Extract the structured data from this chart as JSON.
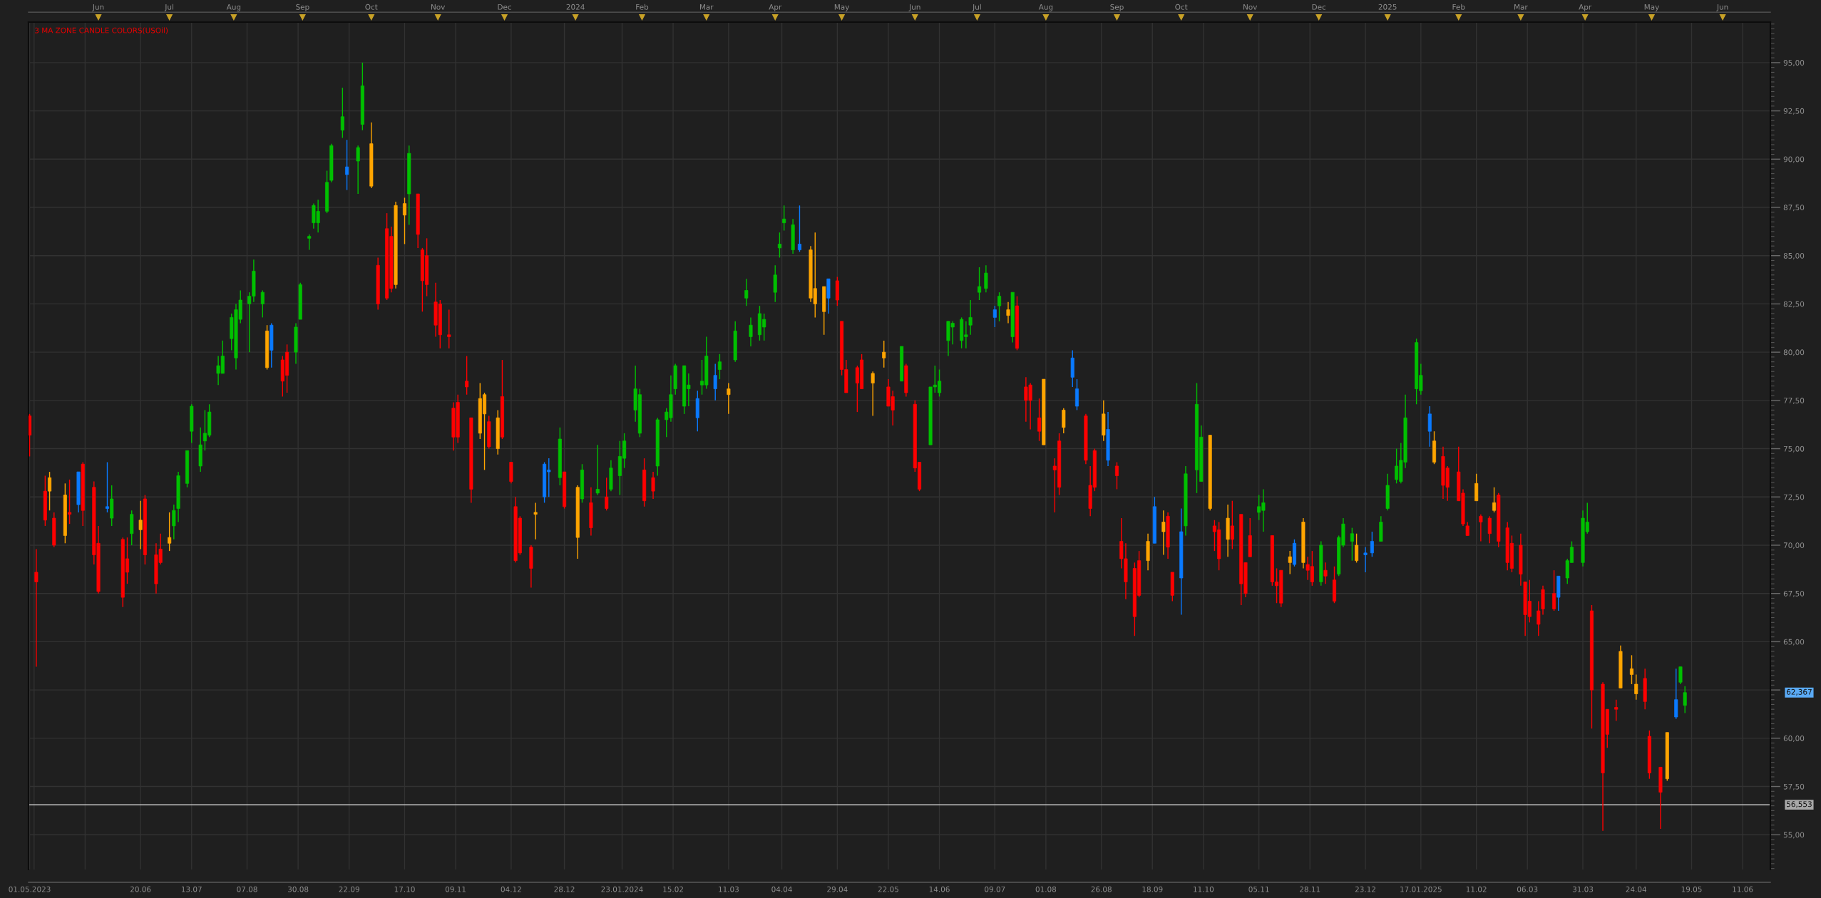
{
  "chart_data": {
    "type": "candlestick",
    "title": "3 MA ZONE CANDLE COLORS(USOil)",
    "x": [
      "2023-05-01",
      "2023-05-04",
      "2023-05-08",
      "2023-05-10",
      "2023-05-12",
      "2023-05-17",
      "2023-05-19",
      "2023-05-23",
      "2023-05-25",
      "2023-05-30",
      "2023-06-01",
      "2023-06-05",
      "2023-06-07",
      "2023-06-12",
      "2023-06-14",
      "2023-06-16",
      "2023-06-20",
      "2023-06-22",
      "2023-06-27",
      "2023-06-29",
      "2023-07-03",
      "2023-07-05",
      "2023-07-07",
      "2023-07-11",
      "2023-07-13",
      "2023-07-17",
      "2023-07-19",
      "2023-07-21",
      "2023-07-25",
      "2023-07-27",
      "2023-07-31",
      "2023-08-02",
      "2023-08-04",
      "2023-08-08",
      "2023-08-10",
      "2023-08-14",
      "2023-08-16",
      "2023-08-18",
      "2023-08-23",
      "2023-08-25",
      "2023-08-29",
      "2023-08-31",
      "2023-09-04",
      "2023-09-06",
      "2023-09-08",
      "2023-09-12",
      "2023-09-14",
      "2023-09-19",
      "2023-09-21",
      "2023-09-26",
      "2023-09-28",
      "2023-10-02",
      "2023-10-05",
      "2023-10-09",
      "2023-10-11",
      "2023-10-13",
      "2023-10-17",
      "2023-10-19",
      "2023-10-23",
      "2023-10-25",
      "2023-10-27",
      "2023-10-31",
      "2023-11-02",
      "2023-11-06",
      "2023-11-08",
      "2023-11-10",
      "2023-11-14",
      "2023-11-16",
      "2023-11-20",
      "2023-11-22",
      "2023-11-24",
      "2023-11-28",
      "2023-11-30",
      "2023-12-04",
      "2023-12-06",
      "2023-12-08",
      "2023-12-13",
      "2023-12-15",
      "2023-12-19",
      "2023-12-21",
      "2023-12-26",
      "2023-12-28",
      "2024-01-03",
      "2024-01-05",
      "2024-01-09",
      "2024-01-12",
      "2024-01-16",
      "2024-01-18",
      "2024-01-22",
      "2024-01-24",
      "2024-01-29",
      "2024-01-31",
      "2024-02-02",
      "2024-02-06",
      "2024-02-08",
      "2024-02-12",
      "2024-02-14",
      "2024-02-16",
      "2024-02-20",
      "2024-02-22",
      "2024-02-26",
      "2024-02-28",
      "2024-03-01",
      "2024-03-05",
      "2024-03-07",
      "2024-03-11",
      "2024-03-14",
      "2024-03-19",
      "2024-03-21",
      "2024-03-25",
      "2024-03-27",
      "2024-04-01",
      "2024-04-03",
      "2024-04-05",
      "2024-04-09",
      "2024-04-12",
      "2024-04-17",
      "2024-04-19",
      "2024-04-23",
      "2024-04-25",
      "2024-04-29",
      "2024-05-01",
      "2024-05-03",
      "2024-05-08",
      "2024-05-10",
      "2024-05-15",
      "2024-05-20",
      "2024-05-22",
      "2024-05-24",
      "2024-05-28",
      "2024-05-30",
      "2024-06-03",
      "2024-06-05",
      "2024-06-10",
      "2024-06-12",
      "2024-06-14",
      "2024-06-18",
      "2024-06-20",
      "2024-06-24",
      "2024-06-26",
      "2024-06-28",
      "2024-07-02",
      "2024-07-05",
      "2024-07-09",
      "2024-07-11",
      "2024-07-15",
      "2024-07-17",
      "2024-07-19",
      "2024-07-23",
      "2024-07-25",
      "2024-07-29",
      "2024-07-31",
      "2024-08-05",
      "2024-08-07",
      "2024-08-09",
      "2024-08-13",
      "2024-08-15",
      "2024-08-19",
      "2024-08-21",
      "2024-08-23",
      "2024-08-27",
      "2024-08-29",
      "2024-09-02",
      "2024-09-04",
      "2024-09-06",
      "2024-09-10",
      "2024-09-12",
      "2024-09-16",
      "2024-09-19",
      "2024-09-23",
      "2024-09-25",
      "2024-09-27",
      "2024-10-01",
      "2024-10-03",
      "2024-10-08",
      "2024-10-10",
      "2024-10-14",
      "2024-10-16",
      "2024-10-18",
      "2024-10-22",
      "2024-10-24",
      "2024-10-28",
      "2024-10-30",
      "2024-11-01",
      "2024-11-05",
      "2024-11-07",
      "2024-11-11",
      "2024-11-13",
      "2024-11-15",
      "2024-11-19",
      "2024-11-21",
      "2024-11-25",
      "2024-11-27",
      "2024-11-29",
      "2024-12-03",
      "2024-12-05",
      "2024-12-09",
      "2024-12-11",
      "2024-12-13",
      "2024-12-17",
      "2024-12-19",
      "2024-12-23",
      "2024-12-26",
      "2024-12-30",
      "2025-01-02",
      "2025-01-06",
      "2025-01-08",
      "2025-01-10",
      "2025-01-15",
      "2025-01-17",
      "2025-01-21",
      "2025-01-23",
      "2025-01-27",
      "2025-01-29",
      "2025-02-03",
      "2025-02-05",
      "2025-02-07",
      "2025-02-11",
      "2025-02-13",
      "2025-02-17",
      "2025-02-19",
      "2025-02-21",
      "2025-02-25",
      "2025-02-27",
      "2025-03-03",
      "2025-03-05",
      "2025-03-07",
      "2025-03-11",
      "2025-03-13",
      "2025-03-18",
      "2025-03-20",
      "2025-03-24",
      "2025-03-26",
      "2025-03-31",
      "2025-04-02",
      "2025-04-04",
      "2025-04-09",
      "2025-04-11",
      "2025-04-15",
      "2025-04-17",
      "2025-04-22",
      "2025-04-24",
      "2025-04-28",
      "2025-04-30",
      "2025-05-05",
      "2025-05-08",
      "2025-05-12",
      "2025-05-14",
      "2025-05-16"
    ],
    "ohlc": [
      [
        76.7,
        76.8,
        74.6,
        75.7
      ],
      [
        68.6,
        69.8,
        63.7,
        68.1
      ],
      [
        72.8,
        73.6,
        71.0,
        71.3
      ],
      [
        72.8,
        73.8,
        71.8,
        73.5
      ],
      [
        71.4,
        71.7,
        69.9,
        70.0
      ],
      [
        70.5,
        73.2,
        70.1,
        72.6
      ],
      [
        71.7,
        73.4,
        71.1,
        71.6
      ],
      [
        72.1,
        73.8,
        71.7,
        73.8
      ],
      [
        74.2,
        74.3,
        71.0,
        71.8
      ],
      [
        73.0,
        73.3,
        69.0,
        69.5
      ],
      [
        70.1,
        71.0,
        67.5,
        67.6
      ],
      [
        71.9,
        74.3,
        71.7,
        72.0
      ],
      [
        71.4,
        73.1,
        71.0,
        72.4
      ],
      [
        70.3,
        70.4,
        66.8,
        67.3
      ],
      [
        69.3,
        70.4,
        68.0,
        68.6
      ],
      [
        70.6,
        71.8,
        70.0,
        71.6
      ],
      [
        71.3,
        72.3,
        69.8,
        70.8
      ],
      [
        72.4,
        72.6,
        69.0,
        69.5
      ],
      [
        69.5,
        70.1,
        67.5,
        68.0
      ],
      [
        69.8,
        70.6,
        69.0,
        69.1
      ],
      [
        70.1,
        71.7,
        69.7,
        70.4
      ],
      [
        71.0,
        72.1,
        70.3,
        71.8
      ],
      [
        71.9,
        73.8,
        71.2,
        73.6
      ],
      [
        73.2,
        74.9,
        73.0,
        74.9
      ],
      [
        75.9,
        77.3,
        75.3,
        77.2
      ],
      [
        74.1,
        76.1,
        73.8,
        75.2
      ],
      [
        75.4,
        77.0,
        74.9,
        75.8
      ],
      [
        75.7,
        77.3,
        75.6,
        76.9
      ],
      [
        78.9,
        79.8,
        78.3,
        79.3
      ],
      [
        78.9,
        80.6,
        78.9,
        79.8
      ],
      [
        80.7,
        82.0,
        80.1,
        81.8
      ],
      [
        79.7,
        82.5,
        79.1,
        82.2
      ],
      [
        81.7,
        83.2,
        81.5,
        82.7
      ],
      [
        82.5,
        83.1,
        80.0,
        82.9
      ],
      [
        82.9,
        84.8,
        82.6,
        84.2
      ],
      [
        82.5,
        83.2,
        81.8,
        83.1
      ],
      [
        81.1,
        81.4,
        79.1,
        79.2
      ],
      [
        80.1,
        81.5,
        79.2,
        81.4
      ],
      [
        79.6,
        79.8,
        77.7,
        78.5
      ],
      [
        80.0,
        80.4,
        77.9,
        78.8
      ],
      [
        80.0,
        81.5,
        79.4,
        81.3
      ],
      [
        81.7,
        83.6,
        81.7,
        83.5
      ],
      [
        85.9,
        86.1,
        85.3,
        86.0
      ],
      [
        86.7,
        87.7,
        86.4,
        87.6
      ],
      [
        86.7,
        87.9,
        86.2,
        87.3
      ],
      [
        87.3,
        89.4,
        87.2,
        88.8
      ],
      [
        88.9,
        90.8,
        88.8,
        90.7
      ],
      [
        91.5,
        93.7,
        91.1,
        92.2
      ],
      [
        89.6,
        91.0,
        88.4,
        89.2
      ],
      [
        89.9,
        90.7,
        88.2,
        90.6
      ],
      [
        91.8,
        95.0,
        91.5,
        93.8
      ],
      [
        90.8,
        91.9,
        88.5,
        88.6
      ],
      [
        84.5,
        84.9,
        82.2,
        82.5
      ],
      [
        86.4,
        87.2,
        82.7,
        82.8
      ],
      [
        86.0,
        86.5,
        83.1,
        83.3
      ],
      [
        83.5,
        87.8,
        83.3,
        87.6
      ],
      [
        87.7,
        88.0,
        85.6,
        87.1
      ],
      [
        88.2,
        90.7,
        86.6,
        90.3
      ],
      [
        88.2,
        88.2,
        85.4,
        86.1
      ],
      [
        85.3,
        85.4,
        82.1,
        83.7
      ],
      [
        85.0,
        85.9,
        82.9,
        83.5
      ],
      [
        82.6,
        83.6,
        80.8,
        81.4
      ],
      [
        82.5,
        82.7,
        80.2,
        80.9
      ],
      [
        80.9,
        82.2,
        80.2,
        80.8
      ],
      [
        77.1,
        77.4,
        74.9,
        75.6
      ],
      [
        77.4,
        77.8,
        75.3,
        75.6
      ],
      [
        78.5,
        79.8,
        77.8,
        78.2
      ],
      [
        76.6,
        76.6,
        72.2,
        72.9
      ],
      [
        75.8,
        78.4,
        75.5,
        77.6
      ],
      [
        77.8,
        77.9,
        73.9,
        76.8
      ],
      [
        76.4,
        76.7,
        75.0,
        75.1
      ],
      [
        75.0,
        77.0,
        74.7,
        76.6
      ],
      [
        77.7,
        79.6,
        75.5,
        75.6
      ],
      [
        74.3,
        74.3,
        73.2,
        73.3
      ],
      [
        72.0,
        72.5,
        69.1,
        69.2
      ],
      [
        71.4,
        71.5,
        69.5,
        69.6
      ],
      [
        69.9,
        70.0,
        67.8,
        68.8
      ],
      [
        71.6,
        72.2,
        70.3,
        71.7
      ],
      [
        72.5,
        74.3,
        72.2,
        74.2
      ],
      [
        73.9,
        74.5,
        72.5,
        73.8
      ],
      [
        73.5,
        76.1,
        73.1,
        75.5
      ],
      [
        73.8,
        73.8,
        71.9,
        72.0
      ],
      [
        70.4,
        73.1,
        69.3,
        73.0
      ],
      [
        72.4,
        74.2,
        72.2,
        73.9
      ],
      [
        72.2,
        73.0,
        70.5,
        70.9
      ],
      [
        72.7,
        75.2,
        72.6,
        72.9
      ],
      [
        72.5,
        73.5,
        71.8,
        71.9
      ],
      [
        72.9,
        74.4,
        72.8,
        74.0
      ],
      [
        73.6,
        75.4,
        72.6,
        74.6
      ],
      [
        74.5,
        75.8,
        74.0,
        75.4
      ],
      [
        77.0,
        79.3,
        76.4,
        78.1
      ],
      [
        75.8,
        78.1,
        75.6,
        77.8
      ],
      [
        73.9,
        74.5,
        72.0,
        72.3
      ],
      [
        73.5,
        73.8,
        72.4,
        72.8
      ],
      [
        74.1,
        76.6,
        73.6,
        76.5
      ],
      [
        76.5,
        77.1,
        75.6,
        76.9
      ],
      [
        76.6,
        78.8,
        76.4,
        77.8
      ],
      [
        78.1,
        79.4,
        77.8,
        79.3
      ],
      [
        77.2,
        79.3,
        76.8,
        79.3
      ],
      [
        78.1,
        78.9,
        77.2,
        78.3
      ],
      [
        77.6,
        78.0,
        75.9,
        76.6
      ],
      [
        78.3,
        79.6,
        77.8,
        78.5
      ],
      [
        78.3,
        80.8,
        78.1,
        79.8
      ],
      [
        78.8,
        79.4,
        77.5,
        78.1
      ],
      [
        79.1,
        79.9,
        78.6,
        79.5
      ],
      [
        78.1,
        78.4,
        76.8,
        77.8
      ],
      [
        79.6,
        81.6,
        79.5,
        81.1
      ],
      [
        82.8,
        83.8,
        82.4,
        83.2
      ],
      [
        80.8,
        81.8,
        80.3,
        81.4
      ],
      [
        80.9,
        82.4,
        80.6,
        82.0
      ],
      [
        81.3,
        82.0,
        80.6,
        81.7
      ],
      [
        83.1,
        84.5,
        82.6,
        84.0
      ],
      [
        85.4,
        86.2,
        84.9,
        85.6
      ],
      [
        86.7,
        87.6,
        86.3,
        86.9
      ],
      [
        85.3,
        86.9,
        85.1,
        86.6
      ],
      [
        85.6,
        87.6,
        85.2,
        85.3
      ],
      [
        85.3,
        85.5,
        82.6,
        82.8
      ],
      [
        82.5,
        86.2,
        81.8,
        83.3
      ],
      [
        83.4,
        83.4,
        80.9,
        82.1
      ],
      [
        82.8,
        83.8,
        82.0,
        83.8
      ],
      [
        83.7,
        83.9,
        82.4,
        82.7
      ],
      [
        81.6,
        81.6,
        78.8,
        79.1
      ],
      [
        79.1,
        79.6,
        77.9,
        77.9
      ],
      [
        79.2,
        79.3,
        76.9,
        78.4
      ],
      [
        79.6,
        79.9,
        78.1,
        78.1
      ],
      [
        78.4,
        79.0,
        76.7,
        78.9
      ],
      [
        80.0,
        80.6,
        79.2,
        79.7
      ],
      [
        78.2,
        78.6,
        77.2,
        77.2
      ],
      [
        77.7,
        78.0,
        76.2,
        77.0
      ],
      [
        78.5,
        80.3,
        78.5,
        80.3
      ],
      [
        79.3,
        79.4,
        77.7,
        77.9
      ],
      [
        77.3,
        77.5,
        73.8,
        74.0
      ],
      [
        74.3,
        74.3,
        72.8,
        72.9
      ],
      [
        75.2,
        78.2,
        75.2,
        78.2
      ],
      [
        78.2,
        79.3,
        77.9,
        78.3
      ],
      [
        77.9,
        79.1,
        77.7,
        78.5
      ],
      [
        80.6,
        81.6,
        79.8,
        81.6
      ],
      [
        81.3,
        81.6,
        80.4,
        81.5
      ],
      [
        80.6,
        81.8,
        80.2,
        81.7
      ],
      [
        80.8,
        81.6,
        80.2,
        80.9
      ],
      [
        81.4,
        82.7,
        80.9,
        81.8
      ],
      [
        83.1,
        84.4,
        82.7,
        83.4
      ],
      [
        83.3,
        84.5,
        83.1,
        84.1
      ],
      [
        82.2,
        82.4,
        81.3,
        81.8
      ],
      [
        82.4,
        83.1,
        81.6,
        82.9
      ],
      [
        82.2,
        82.6,
        81.5,
        81.9
      ],
      [
        80.8,
        83.1,
        80.5,
        83.1
      ],
      [
        82.4,
        82.9,
        80.1,
        80.2
      ],
      [
        78.2,
        78.7,
        76.4,
        77.5
      ],
      [
        78.3,
        78.4,
        76.0,
        77.5
      ],
      [
        76.6,
        77.6,
        75.4,
        75.9
      ],
      [
        75.2,
        78.6,
        75.2,
        78.6
      ],
      [
        74.1,
        74.5,
        71.7,
        73.9
      ],
      [
        75.4,
        75.8,
        72.6,
        73.0
      ],
      [
        76.1,
        77.1,
        75.8,
        77.0
      ],
      [
        79.7,
        80.1,
        78.2,
        78.7
      ],
      [
        78.1,
        78.6,
        77.0,
        77.2
      ],
      [
        76.7,
        76.8,
        74.2,
        74.4
      ],
      [
        73.1,
        74.1,
        71.5,
        71.9
      ],
      [
        74.9,
        75.0,
        72.8,
        73.0
      ],
      [
        75.7,
        77.5,
        75.4,
        76.8
      ],
      [
        74.4,
        76.9,
        74.1,
        76.0
      ],
      [
        74.1,
        74.3,
        72.9,
        73.6
      ],
      [
        70.2,
        71.4,
        68.8,
        69.3
      ],
      [
        69.3,
        70.1,
        67.2,
        68.1
      ],
      [
        68.8,
        69.1,
        65.3,
        66.3
      ],
      [
        69.2,
        69.7,
        67.3,
        67.4
      ],
      [
        69.2,
        70.6,
        68.7,
        70.2
      ],
      [
        70.1,
        72.5,
        70.1,
        72.0
      ],
      [
        71.2,
        71.8,
        69.5,
        70.7
      ],
      [
        71.5,
        71.7,
        69.3,
        69.9
      ],
      [
        68.6,
        68.6,
        67.1,
        67.4
      ],
      [
        68.3,
        71.9,
        66.4,
        70.7
      ],
      [
        71.0,
        74.1,
        70.5,
        73.7
      ],
      [
        73.9,
        78.4,
        72.7,
        77.3
      ],
      [
        73.3,
        76.2,
        73.3,
        75.6
      ],
      [
        75.7,
        75.7,
        71.8,
        71.9
      ],
      [
        71.0,
        71.3,
        69.7,
        70.7
      ],
      [
        70.8,
        71.2,
        68.7,
        69.3
      ],
      [
        70.3,
        72.1,
        69.4,
        71.4
      ],
      [
        71.0,
        72.3,
        69.8,
        70.3
      ],
      [
        71.6,
        71.6,
        66.9,
        68.0
      ],
      [
        69.1,
        69.1,
        67.3,
        67.5
      ],
      [
        70.5,
        71.4,
        69.4,
        69.4
      ],
      [
        71.7,
        72.6,
        71.3,
        72.0
      ],
      [
        71.8,
        72.9,
        70.7,
        72.2
      ],
      [
        70.5,
        70.5,
        67.9,
        68.1
      ],
      [
        68.1,
        68.8,
        67.0,
        67.9
      ],
      [
        68.7,
        68.7,
        66.8,
        67.0
      ],
      [
        69.1,
        69.7,
        68.5,
        69.4
      ],
      [
        69.0,
        70.3,
        68.9,
        70.1
      ],
      [
        71.2,
        71.4,
        68.8,
        69.1
      ],
      [
        69.0,
        69.4,
        68.2,
        68.7
      ],
      [
        68.9,
        69.7,
        67.9,
        68.1
      ],
      [
        68.1,
        70.2,
        67.9,
        70.0
      ],
      [
        68.7,
        69.1,
        68.0,
        68.4
      ],
      [
        68.2,
        68.9,
        67.0,
        67.1
      ],
      [
        68.5,
        70.5,
        68.4,
        70.4
      ],
      [
        70.0,
        71.4,
        69.9,
        71.1
      ],
      [
        70.2,
        70.9,
        69.2,
        70.6
      ],
      [
        70.0,
        70.6,
        69.1,
        69.2
      ],
      [
        69.5,
        69.9,
        68.6,
        69.6
      ],
      [
        69.6,
        70.7,
        69.4,
        70.2
      ],
      [
        70.2,
        71.5,
        70.2,
        71.2
      ],
      [
        71.9,
        73.7,
        71.8,
        73.1
      ],
      [
        73.4,
        75.0,
        73.2,
        74.1
      ],
      [
        73.3,
        75.3,
        73.2,
        74.4
      ],
      [
        74.3,
        77.8,
        74.0,
        76.6
      ],
      [
        78.1,
        80.7,
        77.3,
        80.5
      ],
      [
        78.0,
        79.4,
        77.8,
        78.8
      ],
      [
        76.8,
        77.2,
        75.1,
        75.9
      ],
      [
        75.4,
        75.9,
        74.2,
        74.3
      ],
      [
        74.6,
        75.1,
        72.4,
        73.1
      ],
      [
        74.0,
        74.1,
        72.3,
        73.0
      ],
      [
        73.8,
        75.1,
        72.3,
        72.3
      ],
      [
        72.7,
        72.9,
        71.0,
        71.1
      ],
      [
        71.0,
        71.2,
        70.5,
        70.5
      ],
      [
        72.3,
        73.7,
        72.3,
        73.2
      ],
      [
        71.5,
        71.6,
        70.2,
        71.2
      ],
      [
        71.4,
        71.5,
        70.1,
        70.6
      ],
      [
        71.8,
        73.0,
        71.7,
        72.2
      ],
      [
        72.6,
        72.7,
        69.9,
        70.2
      ],
      [
        70.9,
        71.2,
        68.7,
        69.1
      ],
      [
        70.1,
        70.5,
        68.6,
        68.8
      ],
      [
        70.0,
        70.6,
        67.9,
        68.5
      ],
      [
        68.1,
        68.1,
        65.3,
        66.4
      ],
      [
        67.1,
        68.2,
        66.0,
        66.3
      ],
      [
        66.6,
        67.1,
        65.3,
        65.9
      ],
      [
        67.7,
        67.9,
        66.4,
        66.7
      ],
      [
        67.5,
        68.7,
        66.6,
        66.7
      ],
      [
        67.3,
        68.4,
        66.6,
        68.4
      ],
      [
        68.3,
        69.3,
        68.0,
        69.2
      ],
      [
        69.1,
        70.2,
        69.1,
        69.9
      ],
      [
        69.1,
        71.8,
        68.9,
        71.4
      ],
      [
        70.7,
        72.2,
        70.6,
        71.2
      ],
      [
        66.6,
        66.9,
        60.5,
        62.5
      ],
      [
        62.8,
        62.9,
        55.2,
        58.2
      ],
      [
        61.5,
        61.5,
        59.5,
        60.2
      ],
      [
        61.6,
        62.0,
        60.9,
        61.5
      ],
      [
        62.6,
        64.8,
        62.6,
        64.5
      ],
      [
        63.6,
        64.3,
        62.8,
        63.3
      ],
      [
        62.8,
        63.3,
        62.0,
        62.3
      ],
      [
        63.1,
        63.6,
        61.5,
        61.9
      ],
      [
        60.1,
        60.4,
        57.9,
        58.2
      ],
      [
        58.5,
        58.5,
        55.3,
        57.2
      ],
      [
        57.9,
        60.3,
        57.8,
        60.3
      ],
      [
        61.1,
        63.6,
        61.0,
        62.0
      ],
      [
        62.9,
        63.7,
        62.8,
        63.7
      ],
      [
        61.7,
        62.7,
        61.3,
        62.367
      ]
    ],
    "colors": [
      "#ff0000",
      "#ff0000",
      "#ff0000",
      "#ffa500",
      "#ff0000",
      "#ffa500",
      "#ff0000",
      "#0a7aff",
      "#ff0000",
      "#ff0000",
      "#ff0000",
      "#0a7aff",
      "#00c000",
      "#ff0000",
      "#ff0000",
      "#00c000",
      "#ffa500",
      "#ff0000",
      "#ff0000",
      "#ff0000",
      "#ffa500",
      "#00c000",
      "#00c000",
      "#00c000",
      "#00c000",
      "#00c000",
      "#00c000",
      "#00c000",
      "#00c000",
      "#00c000",
      "#00c000",
      "#00c000",
      "#00c000",
      "#00c000",
      "#00c000",
      "#00c000",
      "#ffa500",
      "#0a7aff",
      "#ff0000",
      "#ff0000",
      "#00c000",
      "#00c000",
      "#00c000",
      "#00c000",
      "#00c000",
      "#00c000",
      "#00c000",
      "#00c000",
      "#0a7aff",
      "#00c000",
      "#00c000",
      "#ffa500",
      "#ff0000",
      "#ff0000",
      "#ff0000",
      "#ffa500",
      "#ffa500",
      "#00c000",
      "#ff0000",
      "#ff0000",
      "#ff0000",
      "#ff0000",
      "#ff0000",
      "#ff0000",
      "#ff0000",
      "#ff0000",
      "#ff0000",
      "#ff0000",
      "#ffa500",
      "#ffa500",
      "#ff0000",
      "#ffa500",
      "#ff0000",
      "#ff0000",
      "#ff0000",
      "#ff0000",
      "#ff0000",
      "#ffa500",
      "#0a7aff",
      "#0a7aff",
      "#00c000",
      "#ff0000",
      "#ffa500",
      "#00c000",
      "#ff0000",
      "#00c000",
      "#ff0000",
      "#00c000",
      "#00c000",
      "#00c000",
      "#00c000",
      "#00c000",
      "#ff0000",
      "#ff0000",
      "#00c000",
      "#00c000",
      "#00c000",
      "#00c000",
      "#00c000",
      "#00c000",
      "#0a7aff",
      "#00c000",
      "#00c000",
      "#0a7aff",
      "#00c000",
      "#ffa500",
      "#00c000",
      "#00c000",
      "#00c000",
      "#00c000",
      "#00c000",
      "#00c000",
      "#00c000",
      "#00c000",
      "#00c000",
      "#0a7aff",
      "#ffa500",
      "#ffa500",
      "#ffa500",
      "#0a7aff",
      "#ff0000",
      "#ff0000",
      "#ff0000",
      "#ff0000",
      "#ff0000",
      "#ffa500",
      "#ffa500",
      "#ff0000",
      "#ff0000",
      "#00c000",
      "#ff0000",
      "#ff0000",
      "#ff0000",
      "#00c000",
      "#00c000",
      "#00c000",
      "#00c000",
      "#00c000",
      "#00c000",
      "#00c000",
      "#00c000",
      "#00c000",
      "#00c000",
      "#0a7aff",
      "#00c000",
      "#ffa500",
      "#00c000",
      "#ff0000",
      "#ff0000",
      "#ff0000",
      "#ff0000",
      "#ffa500",
      "#ff0000",
      "#ff0000",
      "#ffa500",
      "#0a7aff",
      "#0a7aff",
      "#ff0000",
      "#ff0000",
      "#ff0000",
      "#ffa500",
      "#0a7aff",
      "#ff0000",
      "#ff0000",
      "#ff0000",
      "#ff0000",
      "#ff0000",
      "#ffa500",
      "#0a7aff",
      "#ffa500",
      "#ff0000",
      "#ff0000",
      "#0a7aff",
      "#00c000",
      "#00c000",
      "#00c000",
      "#ffa500",
      "#ff0000",
      "#ff0000",
      "#ffa500",
      "#ff0000",
      "#ff0000",
      "#ff0000",
      "#ff0000",
      "#00c000",
      "#00c000",
      "#ff0000",
      "#ff0000",
      "#ff0000",
      "#ffa500",
      "#0a7aff",
      "#ffa500",
      "#ff0000",
      "#ff0000",
      "#00c000",
      "#ff0000",
      "#ff0000",
      "#00c000",
      "#00c000",
      "#00c000",
      "#ffa500",
      "#0a7aff",
      "#0a7aff",
      "#00c000",
      "#00c000",
      "#00c000",
      "#00c000",
      "#00c000",
      "#00c000",
      "#00c000",
      "#0a7aff",
      "#ffa500",
      "#ff0000",
      "#ff0000",
      "#ff0000",
      "#ff0000",
      "#ff0000",
      "#ffa500",
      "#ff0000",
      "#ff0000",
      "#ffa500",
      "#ff0000",
      "#ff0000",
      "#ff0000",
      "#ff0000",
      "#ff0000",
      "#ff0000",
      "#ff0000",
      "#ff0000",
      "#ff0000",
      "#0a7aff",
      "#00c000",
      "#00c000",
      "#00c000",
      "#00c000",
      "#ff0000",
      "#ff0000",
      "#ff0000",
      "#ff0000",
      "#ffa500",
      "#ffa500",
      "#ffa500",
      "#ff0000",
      "#ff0000",
      "#ff0000",
      "#ffa500",
      "#0a7aff",
      "#00c000",
      "#00c000"
    ],
    "xlim": [
      "2023-04-30T12:00",
      "2025-06-23T12:00"
    ],
    "xticks": [
      {
        "value": "2023-05-01",
        "label": "01.05.2023"
      },
      {
        "value": "2023-05-03",
        "label": null
      },
      {
        "value": "2023-05-26",
        "label": null
      },
      {
        "value": "2023-06-20",
        "label": "20.06"
      },
      {
        "value": "2023-07-13",
        "label": "13.07"
      },
      {
        "value": "2023-08-07",
        "label": "07.08"
      },
      {
        "value": "2023-08-30",
        "label": "30.08"
      },
      {
        "value": "2023-09-22",
        "label": "22.09"
      },
      {
        "value": "2023-10-17",
        "label": "17.10"
      },
      {
        "value": "2023-11-09",
        "label": "09.11"
      },
      {
        "value": "2023-12-04",
        "label": "04.12"
      },
      {
        "value": "2023-12-28",
        "label": "28.12"
      },
      {
        "value": "2024-01-23",
        "label": "23.01.2024"
      },
      {
        "value": "2024-02-15",
        "label": "15.02"
      },
      {
        "value": "2024-03-11",
        "label": "11.03"
      },
      {
        "value": "2024-04-04",
        "label": "04.04"
      },
      {
        "value": "2024-04-29",
        "label": "29.04"
      },
      {
        "value": "2024-05-22",
        "label": "22.05"
      },
      {
        "value": "2024-06-14",
        "label": "14.06"
      },
      {
        "value": "2024-07-09",
        "label": "09.07"
      },
      {
        "value": "2024-08-01",
        "label": "01.08"
      },
      {
        "value": "2024-08-26",
        "label": "26.08"
      },
      {
        "value": "2024-09-18",
        "label": "18.09"
      },
      {
        "value": "2024-10-11",
        "label": "11.10"
      },
      {
        "value": "2024-11-05",
        "label": "05.11"
      },
      {
        "value": "2024-11-28",
        "label": "28.11"
      },
      {
        "value": "2024-12-23",
        "label": "23.12"
      },
      {
        "value": "2025-01-17",
        "label": "17.01.2025"
      },
      {
        "value": "2025-02-11",
        "label": "11.02"
      },
      {
        "value": "2025-03-06",
        "label": "06.03"
      },
      {
        "value": "2025-03-31",
        "label": "31.03"
      },
      {
        "value": "2025-04-24",
        "label": "24.04"
      },
      {
        "value": "2025-05-19",
        "label": "19.05"
      },
      {
        "value": "2025-06-11",
        "label": "11.06"
      }
    ],
    "x2lim": [
      "2023-04-30T12:00",
      "2025-06-23T12:00"
    ],
    "x2ticks": [
      {
        "value": "2023-06-01",
        "label": "Jun"
      },
      {
        "value": "2023-07-03",
        "label": "Jul"
      },
      {
        "value": "2023-08-01",
        "label": "Aug"
      },
      {
        "value": "2023-09-01",
        "label": "Sep"
      },
      {
        "value": "2023-10-02",
        "label": "Oct"
      },
      {
        "value": "2023-11-01",
        "label": "Nov"
      },
      {
        "value": "2023-12-01",
        "label": "Dec"
      },
      {
        "value": "2024-01-02",
        "label": "2024"
      },
      {
        "value": "2024-02-01",
        "label": "Feb"
      },
      {
        "value": "2024-03-01",
        "label": "Mar"
      },
      {
        "value": "2024-04-01",
        "label": "Apr"
      },
      {
        "value": "2024-05-01",
        "label": "May"
      },
      {
        "value": "2024-06-03",
        "label": "Jun"
      },
      {
        "value": "2024-07-01",
        "label": "Jul"
      },
      {
        "value": "2024-08-01",
        "label": "Aug"
      },
      {
        "value": "2024-09-02",
        "label": "Sep"
      },
      {
        "value": "2024-10-01",
        "label": "Oct"
      },
      {
        "value": "2024-11-01",
        "label": "Nov"
      },
      {
        "value": "2024-12-02",
        "label": "Dec"
      },
      {
        "value": "2025-01-02",
        "label": "2025"
      },
      {
        "value": "2025-02-03",
        "label": "Feb"
      },
      {
        "value": "2025-03-03",
        "label": "Mar"
      },
      {
        "value": "2025-04-01",
        "label": "Apr"
      },
      {
        "value": "2025-05-01",
        "label": "May"
      },
      {
        "value": "2025-06-02",
        "label": "Jun"
      }
    ],
    "ylim": [
      53.2,
      97.1
    ],
    "yticks": [
      {
        "value": 55,
        "label": "55,00"
      },
      {
        "value": 57.5,
        "label": "57,50"
      },
      {
        "value": 60,
        "label": "60,00"
      },
      {
        "value": 62.5,
        "label": null
      },
      {
        "value": 65,
        "label": "65,00"
      },
      {
        "value": 67.5,
        "label": "67,50"
      },
      {
        "value": 70,
        "label": "70,00"
      },
      {
        "value": 72.5,
        "label": "72,50"
      },
      {
        "value": 75,
        "label": "75,00"
      },
      {
        "value": 77.5,
        "label": "77,50"
      },
      {
        "value": 80,
        "label": "80,00"
      },
      {
        "value": 82.5,
        "label": "82,50"
      },
      {
        "value": 85,
        "label": "85,00"
      },
      {
        "value": 87.5,
        "label": "87,50"
      },
      {
        "value": 90,
        "label": "90,00"
      },
      {
        "value": 92.5,
        "label": "92,50"
      },
      {
        "value": 95,
        "label": "95,00"
      }
    ],
    "grid": true,
    "ref_lines": [
      {
        "axis": "y",
        "value": 56.553,
        "label": "56,553",
        "color": "#c8c8c8"
      }
    ],
    "annotations": [
      "62,367"
    ]
  }
}
